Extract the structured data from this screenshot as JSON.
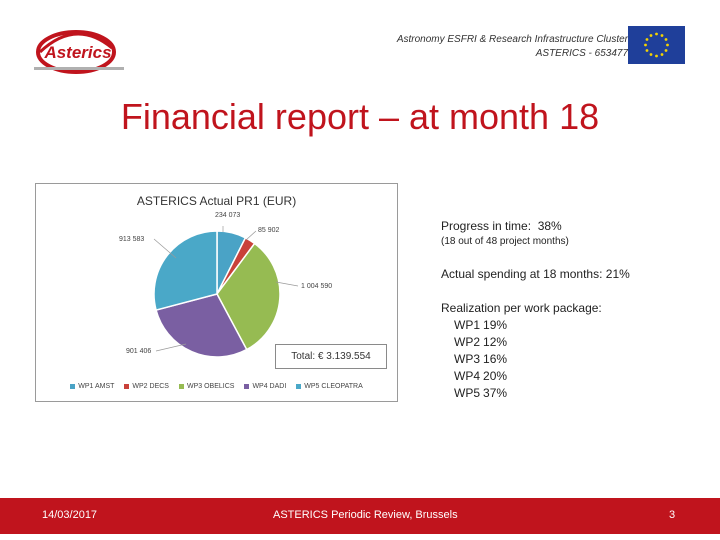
{
  "header": {
    "logo_name": "asterics-logo",
    "cluster_line1": "Astronomy ESFRI & Research Infrastructure Cluster",
    "cluster_line2": "ASTERICS - 653477",
    "flag_icon": "eu-flag-icon"
  },
  "title": "Financial report – at month 18",
  "chart": {
    "total_label": "Total: € 3.139.554",
    "colors": [
      "#4aa3c6",
      "#c9413a",
      "#96bb52",
      "#7a5fa2",
      "#4aa8c8"
    ]
  },
  "chart_data": {
    "type": "pie",
    "title": "ASTERICS Actual PR1 (EUR)",
    "categories": [
      "WP1 AMST",
      "WP2 DECS",
      "WP3 OBELICS",
      "WP4 DADI",
      "WP5 CLEOPATRA"
    ],
    "values": [
      234073,
      85902,
      1004590,
      901406,
      913583
    ],
    "value_labels": [
      "234 073",
      "85 902",
      "1 004 590",
      "901 406",
      "913 583"
    ],
    "legend_position": "bottom"
  },
  "progress": {
    "time_label": "Progress in time:",
    "time_value": "38%",
    "time_note": "(18 out of 48 project months)",
    "spending": "Actual spending at 18 months: 21%",
    "wp_heading": "Realization per work package:",
    "wps": [
      {
        "name": "WP1",
        "value": "19%"
      },
      {
        "name": "WP2",
        "value": "12%"
      },
      {
        "name": "WP3",
        "value": "16%"
      },
      {
        "name": "WP4",
        "value": "20%"
      },
      {
        "name": "WP5",
        "value": "37%"
      }
    ]
  },
  "footer": {
    "date": "14/03/2017",
    "event": "ASTERICS Periodic Review, Brussels",
    "page": "3"
  }
}
